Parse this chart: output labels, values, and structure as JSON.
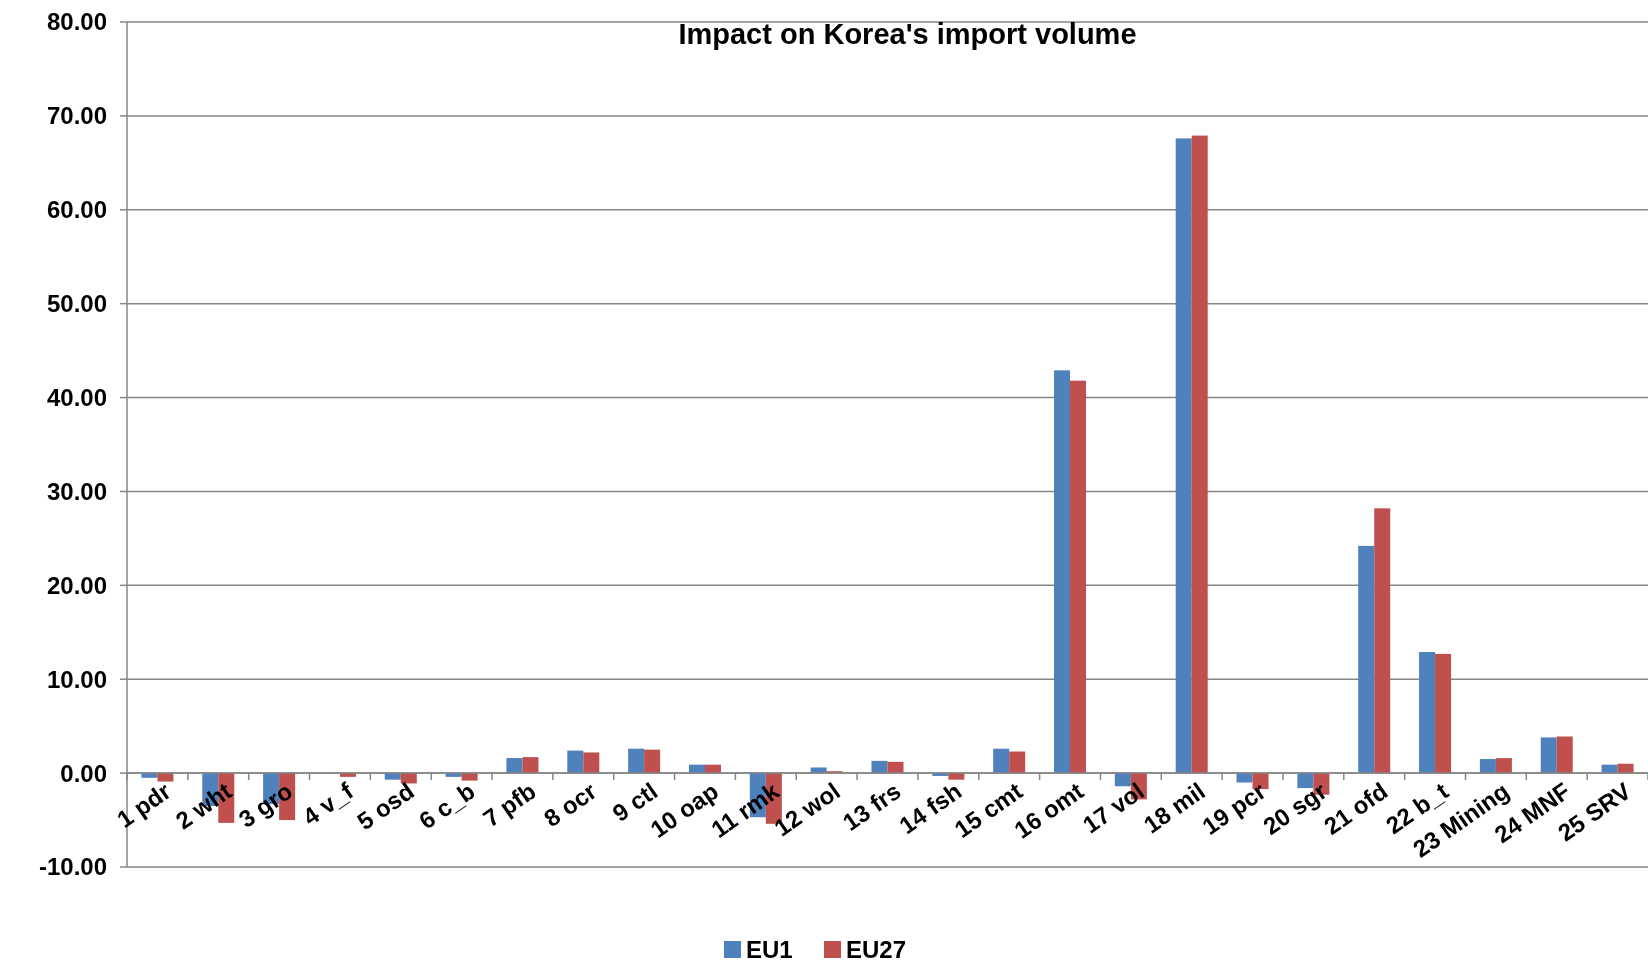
{
  "chart_data": {
    "type": "bar",
    "title": "Impact on Korea's import volume",
    "categories": [
      "1 pdr",
      "2 wht",
      "3 gro",
      "4 v_f",
      "5 osd",
      "6 c_b",
      "7 pfb",
      "8 ocr",
      "9 ctl",
      "10 oap",
      "11 rmk",
      "12 wol",
      "13 frs",
      "14 fsh",
      "15 cmt",
      "16 omt",
      "17 vol",
      "18 mil",
      "19 pcr",
      "20 sgr",
      "21 ofd",
      "22 b_t",
      "23 Mining",
      "24 MNF",
      "25 SRV"
    ],
    "series": [
      {
        "name": "EU1",
        "color": "#4f81bd",
        "values": [
          -0.5,
          -3.5,
          -3.3,
          0,
          -0.7,
          -0.4,
          1.6,
          2.4,
          2.6,
          0.9,
          -4.7,
          0.6,
          1.3,
          -0.3,
          2.6,
          42.9,
          -1.4,
          67.6,
          -1.0,
          -1.6,
          24.2,
          12.9,
          1.5,
          3.8,
          0.9
        ]
      },
      {
        "name": "EU27",
        "color": "#c0504d",
        "values": [
          -0.9,
          -5.3,
          -5.0,
          -0.4,
          -1.1,
          -0.8,
          1.7,
          2.2,
          2.5,
          0.9,
          -5.4,
          0.2,
          1.2,
          -0.7,
          2.3,
          41.8,
          -2.8,
          67.9,
          -1.7,
          -2.3,
          28.2,
          12.7,
          1.6,
          3.9,
          1.0
        ]
      }
    ],
    "ylim": [
      -10,
      80
    ],
    "yticks": [
      {
        "value": -10,
        "label": "-10.00"
      },
      {
        "value": 0,
        "label": "0.00"
      },
      {
        "value": 10,
        "label": "10.00"
      },
      {
        "value": 20,
        "label": "20.00"
      },
      {
        "value": 30,
        "label": "30.00"
      },
      {
        "value": 40,
        "label": "40.00"
      },
      {
        "value": 50,
        "label": "50.00"
      },
      {
        "value": 60,
        "label": "60.00"
      },
      {
        "value": 70,
        "label": "70.00"
      },
      {
        "value": 80,
        "label": "80.00"
      }
    ],
    "grid": "y",
    "legend": "bottom"
  }
}
